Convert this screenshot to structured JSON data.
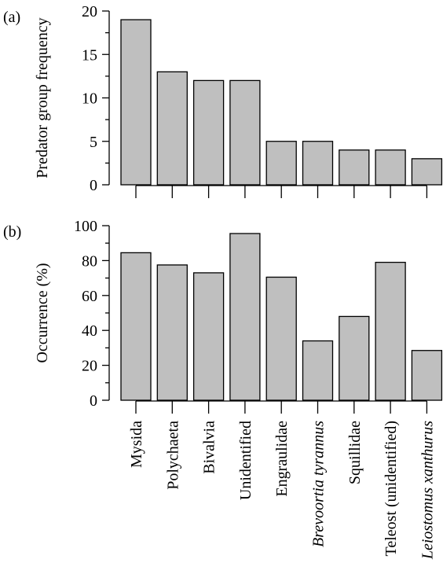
{
  "chart_data": [
    {
      "panel_label": "(a)",
      "type": "bar",
      "ylabel": "Predator group frequency",
      "ylim": [
        0,
        20
      ],
      "yticks": [
        0,
        5,
        10,
        15,
        20
      ],
      "categories": [
        "Mysida",
        "Polychaeta",
        "Bivalvia",
        "Unidentified",
        "Engraulidae",
        "Brevoortia tyrannus",
        "Squillidae",
        "Teleost (unidentified)",
        "Leiostomus xanthurus"
      ],
      "values": [
        19,
        13,
        12,
        12,
        5,
        5,
        4,
        4,
        3
      ]
    },
    {
      "panel_label": "(b)",
      "type": "bar",
      "ylabel": "Occurrence (%)",
      "ylim": [
        0,
        100
      ],
      "yticks": [
        0,
        20,
        40,
        60,
        80,
        100
      ],
      "categories": [
        "Mysida",
        "Polychaeta",
        "Bivalvia",
        "Unidentified",
        "Engraulidae",
        "Brevoortia tyrannus",
        "Squillidae",
        "Teleost (unidentified)",
        "Leiostomus xanthurus"
      ],
      "italic_categories": [
        "Brevoortia tyrannus",
        "Leiostomus xanthurus"
      ],
      "values": [
        84.5,
        77.5,
        73,
        95.5,
        70.5,
        34,
        48,
        79,
        28.5
      ]
    }
  ]
}
